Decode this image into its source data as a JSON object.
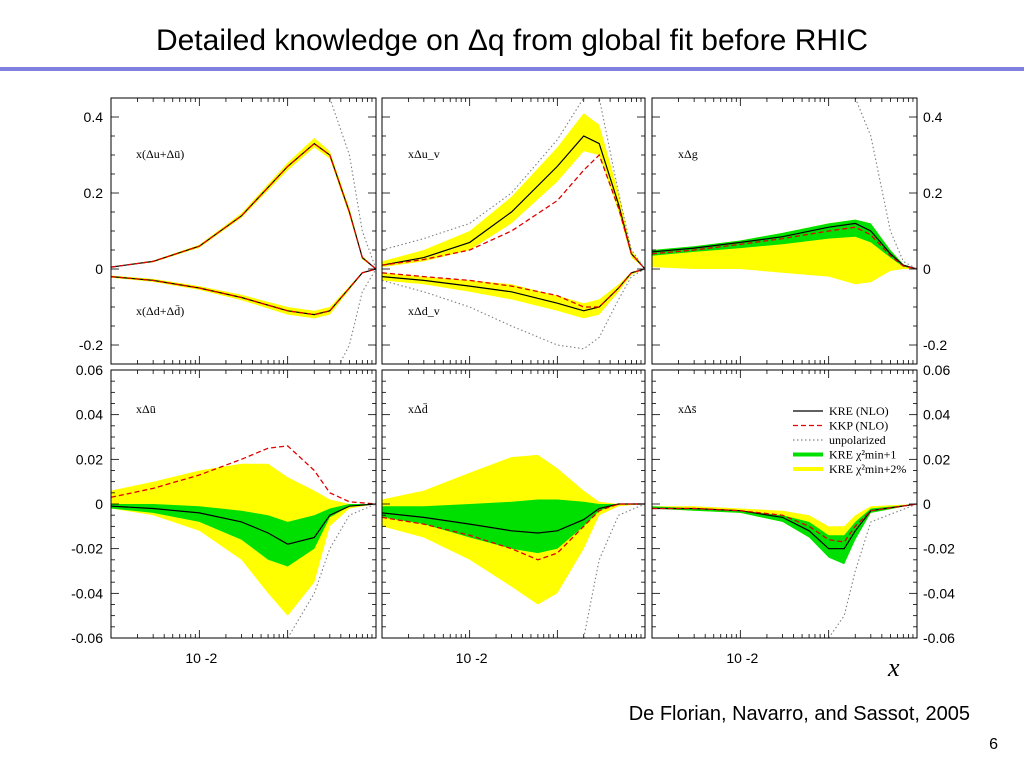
{
  "slide": {
    "title": "Detailed knowledge on Δq from global fit before RHIC",
    "credit": "De Florian, Navarro, and Sassot, 2005",
    "page_number": "6",
    "x_axis_symbol": "x",
    "x_tick_label": "10 -2"
  },
  "colors": {
    "yellow_band": "#ffff00",
    "green_band": "#00e000",
    "kre_line": "#000000",
    "kkp_line": "#e00000",
    "unpolarized_line": "#808080",
    "title_rule": "#8080e0"
  },
  "chart_data": [
    {
      "type": "area",
      "panel": "top-left",
      "xscale": "log",
      "xlim": [
        0.001,
        1
      ],
      "ylim": [
        -0.25,
        0.45
      ],
      "yticks": [
        "0.4",
        "0.2",
        "0",
        "-0.2"
      ],
      "labels": [
        "x(Δu+Δū)",
        "x(Δd+Δd̄)"
      ],
      "x": [
        0.001,
        0.003,
        0.01,
        0.03,
        0.1,
        0.2,
        0.3,
        0.5,
        0.7,
        1
      ],
      "series": [
        {
          "name": "KRE (NLO)",
          "values_u": [
            0.005,
            0.02,
            0.06,
            0.14,
            0.27,
            0.33,
            0.3,
            0.15,
            0.03,
            0
          ],
          "values_d": [
            -0.02,
            -0.03,
            -0.05,
            -0.075,
            -0.11,
            -0.12,
            -0.11,
            -0.05,
            -0.01,
            0
          ]
        },
        {
          "name": "KKP (NLO)",
          "values_u": [
            0.005,
            0.02,
            0.06,
            0.14,
            0.27,
            0.33,
            0.3,
            0.15,
            0.03,
            0
          ],
          "values_d": [
            -0.02,
            -0.03,
            -0.05,
            -0.075,
            -0.11,
            -0.12,
            -0.11,
            -0.05,
            -0.01,
            0
          ]
        },
        {
          "name": "unpolarized",
          "values_u": [
            null,
            null,
            null,
            null,
            null,
            null,
            0.45,
            0.3,
            0.1,
            0
          ],
          "values_d": [
            null,
            null,
            null,
            null,
            null,
            null,
            -0.3,
            -0.2,
            -0.06,
            0
          ]
        }
      ],
      "bands": [
        {
          "name": "KRE χ²min+2%",
          "u_lower": [
            0.005,
            0.018,
            0.056,
            0.135,
            0.26,
            0.32,
            0.29,
            0.14,
            0.025,
            0
          ],
          "u_upper": [
            0.006,
            0.022,
            0.064,
            0.147,
            0.28,
            0.345,
            0.31,
            0.16,
            0.035,
            0
          ],
          "d_lower": [
            -0.023,
            -0.034,
            -0.055,
            -0.082,
            -0.12,
            -0.13,
            -0.12,
            -0.055,
            -0.012,
            0
          ],
          "d_upper": [
            -0.017,
            -0.026,
            -0.045,
            -0.068,
            -0.1,
            -0.11,
            -0.1,
            -0.045,
            -0.008,
            0
          ]
        }
      ]
    },
    {
      "type": "area",
      "panel": "top-middle",
      "xscale": "log",
      "xlim": [
        0.001,
        1
      ],
      "ylim": [
        -0.25,
        0.45
      ],
      "yticks": [],
      "labels": [
        "xΔu_v",
        "xΔd_v"
      ],
      "x": [
        0.001,
        0.003,
        0.01,
        0.03,
        0.1,
        0.2,
        0.3,
        0.5,
        0.7,
        1
      ],
      "series": [
        {
          "name": "KRE (NLO)",
          "values_u": [
            0.01,
            0.03,
            0.07,
            0.15,
            0.27,
            0.35,
            0.33,
            0.17,
            0.04,
            0
          ],
          "values_d": [
            -0.02,
            -0.03,
            -0.045,
            -0.06,
            -0.09,
            -0.11,
            -0.1,
            -0.05,
            -0.01,
            0
          ]
        },
        {
          "name": "KKP (NLO)",
          "values_u": [
            0.01,
            0.025,
            0.05,
            0.1,
            0.18,
            0.26,
            0.3,
            0.16,
            0.04,
            0
          ],
          "values_d": [
            -0.01,
            -0.02,
            -0.03,
            -0.045,
            -0.07,
            -0.1,
            -0.1,
            -0.05,
            -0.01,
            0
          ]
        },
        {
          "name": "unpolarized",
          "values_u": [
            0.05,
            0.08,
            0.12,
            0.2,
            0.34,
            0.45,
            0.45,
            0.2,
            0.05,
            0
          ],
          "values_d": [
            -0.03,
            -0.06,
            -0.1,
            -0.15,
            -0.2,
            -0.21,
            -0.18,
            -0.08,
            -0.02,
            0
          ]
        }
      ],
      "bands": [
        {
          "name": "KRE χ²min+2%",
          "u_lower": [
            0.005,
            0.02,
            0.05,
            0.12,
            0.23,
            0.31,
            0.3,
            0.15,
            0.03,
            0
          ],
          "u_upper": [
            0.02,
            0.05,
            0.1,
            0.19,
            0.32,
            0.41,
            0.38,
            0.2,
            0.05,
            0
          ],
          "d_lower": [
            -0.03,
            -0.04,
            -0.06,
            -0.08,
            -0.11,
            -0.13,
            -0.12,
            -0.06,
            -0.015,
            0
          ],
          "d_upper": [
            -0.01,
            -0.02,
            -0.03,
            -0.04,
            -0.07,
            -0.09,
            -0.08,
            -0.04,
            -0.008,
            0
          ]
        }
      ]
    },
    {
      "type": "area",
      "panel": "top-right",
      "xscale": "log",
      "xlim": [
        0.001,
        1
      ],
      "ylim": [
        -0.25,
        0.45
      ],
      "yticks": [
        "0.4",
        "0.2",
        "0",
        "-0.2"
      ],
      "labels": [
        "xΔg"
      ],
      "x": [
        0.001,
        0.003,
        0.01,
        0.03,
        0.1,
        0.2,
        0.3,
        0.5,
        0.7,
        1
      ],
      "series": [
        {
          "name": "KRE (NLO)",
          "values": [
            0.045,
            0.055,
            0.07,
            0.085,
            0.11,
            0.12,
            0.1,
            0.04,
            0.01,
            0
          ]
        },
        {
          "name": "KKP (NLO)",
          "values": [
            0.04,
            0.05,
            0.065,
            0.08,
            0.1,
            0.11,
            0.09,
            0.035,
            0.008,
            0
          ]
        },
        {
          "name": "unpolarized",
          "values": [
            null,
            null,
            null,
            null,
            null,
            0.45,
            0.35,
            0.1,
            0.02,
            0
          ]
        }
      ],
      "bands": [
        {
          "name": "KRE χ²min+2%",
          "lower": [
            0.005,
            0.0,
            0.0,
            -0.01,
            -0.02,
            -0.04,
            -0.035,
            -0.005,
            0.0,
            0
          ],
          "upper": [
            0.05,
            0.06,
            0.075,
            0.095,
            0.12,
            0.13,
            0.12,
            0.05,
            0.012,
            0
          ]
        },
        {
          "name": "KRE χ²min+1",
          "lower": [
            0.035,
            0.045,
            0.055,
            0.065,
            0.08,
            0.085,
            0.07,
            0.03,
            0.006,
            0
          ],
          "upper": [
            0.05,
            0.06,
            0.075,
            0.095,
            0.12,
            0.13,
            0.12,
            0.05,
            0.012,
            0
          ]
        }
      ]
    },
    {
      "type": "area",
      "panel": "bottom-left",
      "xscale": "log",
      "xlim": [
        0.001,
        1
      ],
      "ylim": [
        -0.06,
        0.06
      ],
      "yticks": [
        "0.06",
        "0.04",
        "0.02",
        "0",
        "-0.02",
        "-0.04",
        "-0.06"
      ],
      "labels": [
        "xΔū"
      ],
      "x": [
        0.001,
        0.003,
        0.01,
        0.03,
        0.06,
        0.1,
        0.2,
        0.3,
        0.5,
        1
      ],
      "series": [
        {
          "name": "KRE (NLO)",
          "values": [
            -0.001,
            -0.002,
            -0.004,
            -0.008,
            -0.013,
            -0.018,
            -0.015,
            -0.005,
            -0.001,
            0
          ]
        },
        {
          "name": "KKP (NLO)",
          "values": [
            0.003,
            0.007,
            0.013,
            0.02,
            0.025,
            0.026,
            0.015,
            0.005,
            0.001,
            0
          ]
        },
        {
          "name": "unpolarized",
          "values": [
            null,
            null,
            null,
            null,
            null,
            -0.06,
            -0.04,
            -0.02,
            -0.005,
            0
          ]
        }
      ],
      "bands": [
        {
          "name": "KRE χ²min+2%",
          "lower": [
            -0.002,
            -0.005,
            -0.012,
            -0.025,
            -0.04,
            -0.05,
            -0.035,
            -0.01,
            -0.002,
            0
          ],
          "upper": [
            0.006,
            0.01,
            0.015,
            0.018,
            0.018,
            0.012,
            0.006,
            0.002,
            0.0,
            0
          ]
        },
        {
          "name": "KRE χ²min+1",
          "lower": [
            -0.002,
            -0.004,
            -0.008,
            -0.016,
            -0.025,
            -0.028,
            -0.02,
            -0.006,
            -0.001,
            0
          ],
          "upper": [
            0.0,
            0.0,
            -0.001,
            -0.003,
            -0.005,
            -0.008,
            -0.005,
            -0.002,
            0.0,
            0
          ]
        }
      ]
    },
    {
      "type": "area",
      "panel": "bottom-middle",
      "xscale": "log",
      "xlim": [
        0.001,
        1
      ],
      "ylim": [
        -0.06,
        0.06
      ],
      "yticks": [],
      "labels": [
        "xΔd̄"
      ],
      "x": [
        0.001,
        0.003,
        0.01,
        0.03,
        0.06,
        0.1,
        0.2,
        0.3,
        0.5,
        1
      ],
      "series": [
        {
          "name": "KRE (NLO)",
          "values": [
            -0.004,
            -0.006,
            -0.009,
            -0.012,
            -0.013,
            -0.012,
            -0.007,
            -0.002,
            0.0,
            0
          ]
        },
        {
          "name": "KKP (NLO)",
          "values": [
            -0.006,
            -0.009,
            -0.014,
            -0.02,
            -0.025,
            -0.022,
            -0.01,
            -0.003,
            0.0,
            0
          ]
        },
        {
          "name": "unpolarized",
          "values": [
            null,
            null,
            null,
            null,
            null,
            null,
            -0.06,
            -0.025,
            -0.005,
            0
          ]
        }
      ],
      "bands": [
        {
          "name": "KRE χ²min+2%",
          "lower": [
            -0.01,
            -0.015,
            -0.025,
            -0.037,
            -0.045,
            -0.04,
            -0.02,
            -0.005,
            -0.001,
            0
          ],
          "upper": [
            0.002,
            0.006,
            0.014,
            0.021,
            0.022,
            0.016,
            0.006,
            0.001,
            0.0,
            0
          ]
        },
        {
          "name": "KRE χ²min+1",
          "lower": [
            -0.006,
            -0.009,
            -0.015,
            -0.02,
            -0.022,
            -0.02,
            -0.01,
            -0.003,
            0.0,
            0
          ],
          "upper": [
            -0.001,
            -0.001,
            0.0,
            0.001,
            0.002,
            0.002,
            0.001,
            0.0,
            0.0,
            0
          ]
        }
      ]
    },
    {
      "type": "area",
      "panel": "bottom-right",
      "xscale": "log",
      "xlim": [
        0.001,
        1
      ],
      "ylim": [
        -0.06,
        0.06
      ],
      "yticks": [
        "0.06",
        "0.04",
        "0.02",
        "0",
        "-0.02",
        "-0.04",
        "-0.06"
      ],
      "labels": [
        "xΔs̄"
      ],
      "x": [
        0.001,
        0.003,
        0.01,
        0.03,
        0.06,
        0.1,
        0.15,
        0.2,
        0.3,
        1
      ],
      "series": [
        {
          "name": "KRE (NLO)",
          "values": [
            -0.002,
            -0.002,
            -0.003,
            -0.006,
            -0.012,
            -0.02,
            -0.02,
            -0.012,
            -0.003,
            0
          ]
        },
        {
          "name": "KKP (NLO)",
          "values": [
            -0.002,
            -0.002,
            -0.003,
            -0.005,
            -0.01,
            -0.016,
            -0.017,
            -0.01,
            -0.003,
            0
          ]
        },
        {
          "name": "unpolarized",
          "values": [
            null,
            null,
            null,
            null,
            null,
            -0.06,
            -0.05,
            -0.03,
            -0.008,
            0
          ]
        }
      ],
      "bands": [
        {
          "name": "KRE χ²min+2%",
          "lower": [
            -0.002,
            -0.003,
            -0.004,
            -0.008,
            -0.015,
            -0.023,
            -0.025,
            -0.015,
            -0.004,
            0
          ],
          "upper": [
            -0.001,
            -0.001,
            -0.002,
            -0.003,
            -0.005,
            -0.01,
            -0.01,
            -0.005,
            -0.001,
            0
          ]
        },
        {
          "name": "KRE χ²min+1",
          "lower": [
            -0.002,
            -0.003,
            -0.004,
            -0.008,
            -0.015,
            -0.024,
            -0.027,
            -0.016,
            -0.004,
            0
          ],
          "upper": [
            -0.001,
            -0.002,
            -0.003,
            -0.005,
            -0.008,
            -0.014,
            -0.014,
            -0.008,
            -0.002,
            0
          ]
        }
      ]
    }
  ],
  "legend": {
    "position": "bottom-right panel, top-right",
    "entries": [
      {
        "label": "KRE (NLO)",
        "style": "solid",
        "color": "#000000"
      },
      {
        "label": "KKP (NLO)",
        "style": "dashed",
        "color": "#e00000"
      },
      {
        "label": "unpolarized",
        "style": "dotted",
        "color": "#808080"
      },
      {
        "label": "KRE χ²min+1",
        "style": "band",
        "color": "#00e000"
      },
      {
        "label": "KRE χ²min+2%",
        "style": "band",
        "color": "#ffff00"
      }
    ]
  }
}
